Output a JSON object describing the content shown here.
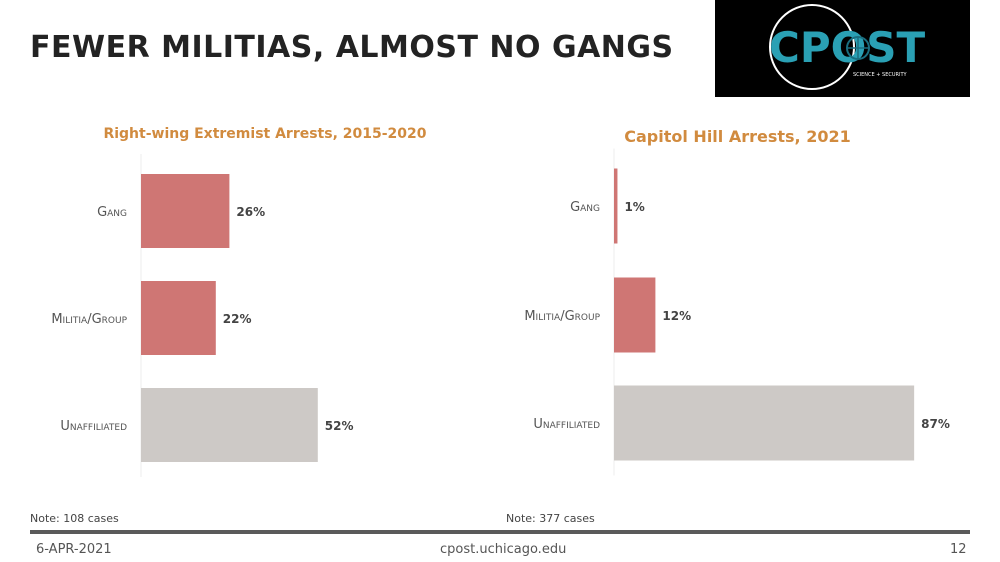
{
  "slide": {
    "title": "FEWER MILITIAS, ALMOST NO GANGS"
  },
  "logo": {
    "wordmark": "CPOST",
    "tagline": "SCIENCE + SECURITY",
    "bg_color": "#000000",
    "text_color": "#2aa0b4"
  },
  "colors": {
    "title_accent": "#d18b3f",
    "bar_red": "#cf7674",
    "bar_gray": "#cdc9c6"
  },
  "chart_data": [
    {
      "type": "bar",
      "orientation": "horizontal",
      "title": "Right-wing Extremist Arrests, 2015-2020",
      "categories": [
        "Gang",
        "Militia/Group",
        "Unaffiliated"
      ],
      "values": [
        26,
        22,
        52
      ],
      "value_labels": [
        "26%",
        "22%",
        "52%"
      ],
      "xlim": [
        0,
        100
      ],
      "grid": false,
      "note": "Note: 108 cases"
    },
    {
      "type": "bar",
      "orientation": "horizontal",
      "title": "Capitol Hill Arrests, 2021",
      "categories": [
        "Gang",
        "Militia/Group",
        "Unaffiliated"
      ],
      "values": [
        1,
        12,
        87
      ],
      "value_labels": [
        "1%",
        "12%",
        "87%"
      ],
      "xlim": [
        0,
        100
      ],
      "grid": false,
      "note": "Note: 377 cases"
    }
  ],
  "footer": {
    "date": "6-APR-2021",
    "url": "cpost.uchicago.edu",
    "page_number": "12"
  }
}
